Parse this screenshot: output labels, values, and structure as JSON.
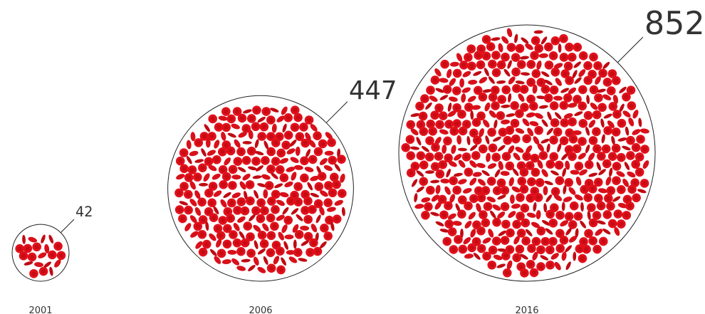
{
  "chart_data": {
    "type": "bubble",
    "categories": [
      "2001",
      "2006",
      "2016"
    ],
    "values": [
      42,
      447,
      852
    ],
    "color": "#e0111b"
  }
}
